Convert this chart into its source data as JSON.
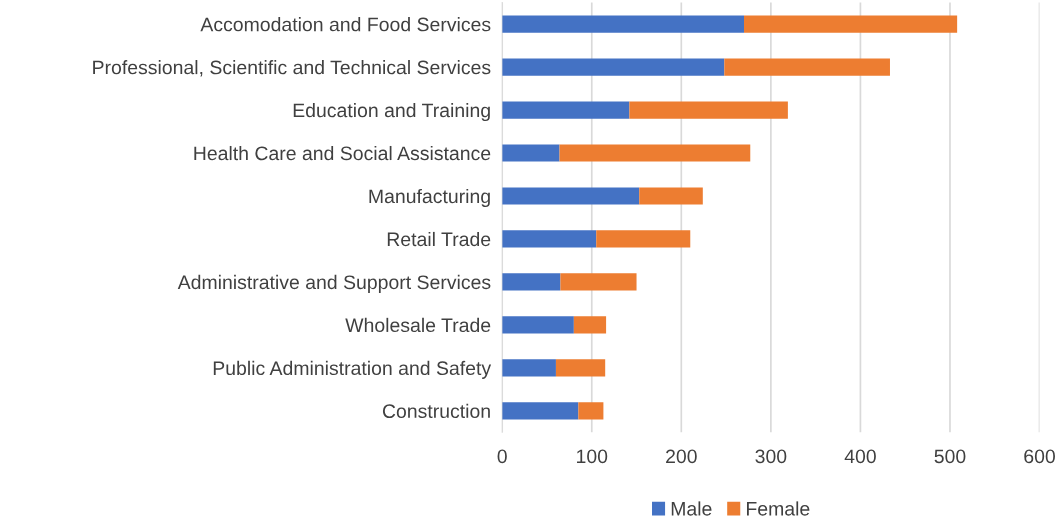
{
  "chart_data": {
    "type": "bar",
    "orientation": "horizontal",
    "stacked": true,
    "categories": [
      "Accomodation and Food Services",
      "Professional, Scientific and Technical Services",
      "Education and Training",
      "Health Care and Social Assistance",
      "Manufacturing",
      "Retail Trade",
      "Administrative and Support Services",
      "Wholesale Trade",
      "Public Administration and Safety",
      "Construction"
    ],
    "series": [
      {
        "name": "Male",
        "color": "#4472c4",
        "values": [
          270,
          248,
          142,
          64,
          153,
          105,
          65,
          80,
          60,
          85
        ]
      },
      {
        "name": "Female",
        "color": "#ed7d31",
        "values": [
          238,
          185,
          177,
          213,
          71,
          105,
          85,
          36,
          55,
          28
        ]
      }
    ],
    "xlim": [
      0,
      600
    ],
    "xticks": [
      0,
      100,
      200,
      300,
      400,
      500,
      600
    ],
    "grid": "x",
    "legend": "bottom"
  }
}
